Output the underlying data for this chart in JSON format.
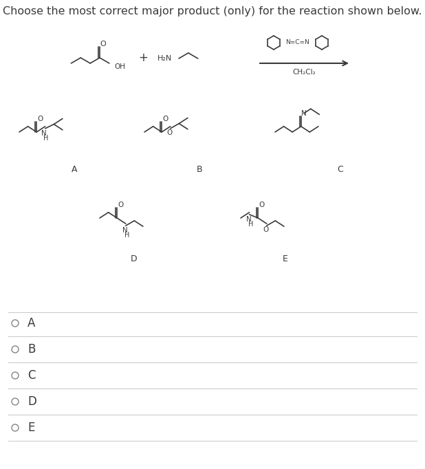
{
  "title": "Choose the most correct major product (only) for the reaction shown below.",
  "title_fontsize": 11.5,
  "bg_color": "#ffffff",
  "text_color": "#3a3a3a",
  "label_color": "#3a3a3a",
  "sep_color": "#cccccc",
  "bond_color": "#3a3a3a",
  "bond_lw": 1.2,
  "options": [
    "A",
    "B",
    "C",
    "D",
    "E"
  ]
}
